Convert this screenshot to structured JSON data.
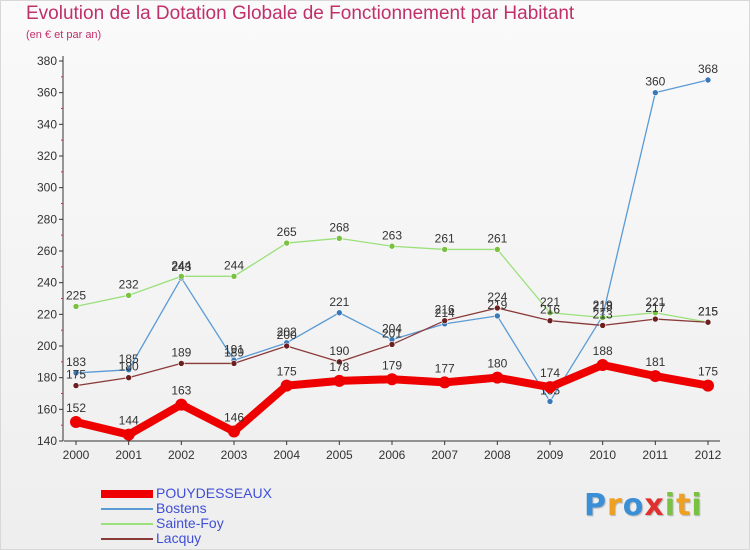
{
  "title": "Evolution de la Dotation Globale de Fonctionnement par Habitant",
  "subtitle": "(en € et par an)",
  "logo": {
    "text": "Proxiti",
    "colors": [
      "#3a8fd6",
      "#f0a020",
      "#3a8fd6",
      "#e03030",
      "#7ac142",
      "#f0a020",
      "#7ac142"
    ]
  },
  "chart_data": {
    "type": "line",
    "title": "Evolution de la Dotation Globale de Fonctionnement par Habitant",
    "subtitle": "(en € et par an)",
    "x": [
      "2000",
      "2001",
      "2002",
      "2003",
      "2004",
      "2005",
      "2006",
      "2007",
      "2008",
      "2009",
      "2010",
      "2011",
      "2012"
    ],
    "ylim": [
      140,
      380
    ],
    "yticks": [
      140,
      160,
      180,
      200,
      220,
      240,
      260,
      280,
      300,
      320,
      340,
      360,
      380
    ],
    "grid": false,
    "legend": "bottom-left",
    "series": [
      {
        "name": "Bostens",
        "color": "#5b9bd5",
        "dot": "#3a78b8",
        "values": [
          183,
          185,
          243,
          191,
          202,
          221,
          204,
          214,
          219,
          165,
          219,
          360,
          368
        ],
        "labels": [
          "183",
          "185",
          "243",
          "191",
          "202",
          "221",
          "204",
          "214",
          "219",
          "165",
          "219",
          "360",
          "368"
        ]
      },
      {
        "name": "Sainte-Foy",
        "color": "#9be07a",
        "dot": "#7ac142",
        "values": [
          225,
          232,
          244,
          244,
          265,
          268,
          263,
          261,
          261,
          221,
          218,
          221,
          215
        ],
        "labels": [
          "225",
          "232",
          "244",
          "244",
          "265",
          "268",
          "263",
          "261",
          "261",
          "221",
          "218",
          "221",
          "215"
        ]
      },
      {
        "name": "Lacquy",
        "color": "#8b3a3a",
        "dot": "#6b1f1f",
        "values": [
          175,
          180,
          189,
          189,
          200,
          190,
          201,
          216,
          224,
          216,
          213,
          217,
          215
        ],
        "labels": [
          "175",
          "180",
          "189",
          "189",
          "200",
          "190",
          "201",
          "216",
          "224",
          "216",
          "213",
          "217",
          "215"
        ]
      },
      {
        "name": "POUYDESSEAUX",
        "color": "#ee0000",
        "dot": "#ee0000",
        "thick": true,
        "values": [
          152,
          144,
          163,
          146,
          175,
          178,
          179,
          177,
          180,
          174,
          188,
          181,
          175
        ],
        "labels": [
          "152",
          "144",
          "163",
          "146",
          "175",
          "178",
          "179",
          "177",
          "180",
          "174",
          "188",
          "181",
          "175"
        ]
      }
    ],
    "legend_order": [
      "POUYDESSEAUX",
      "Bostens",
      "Sainte-Foy",
      "Lacquy"
    ]
  }
}
